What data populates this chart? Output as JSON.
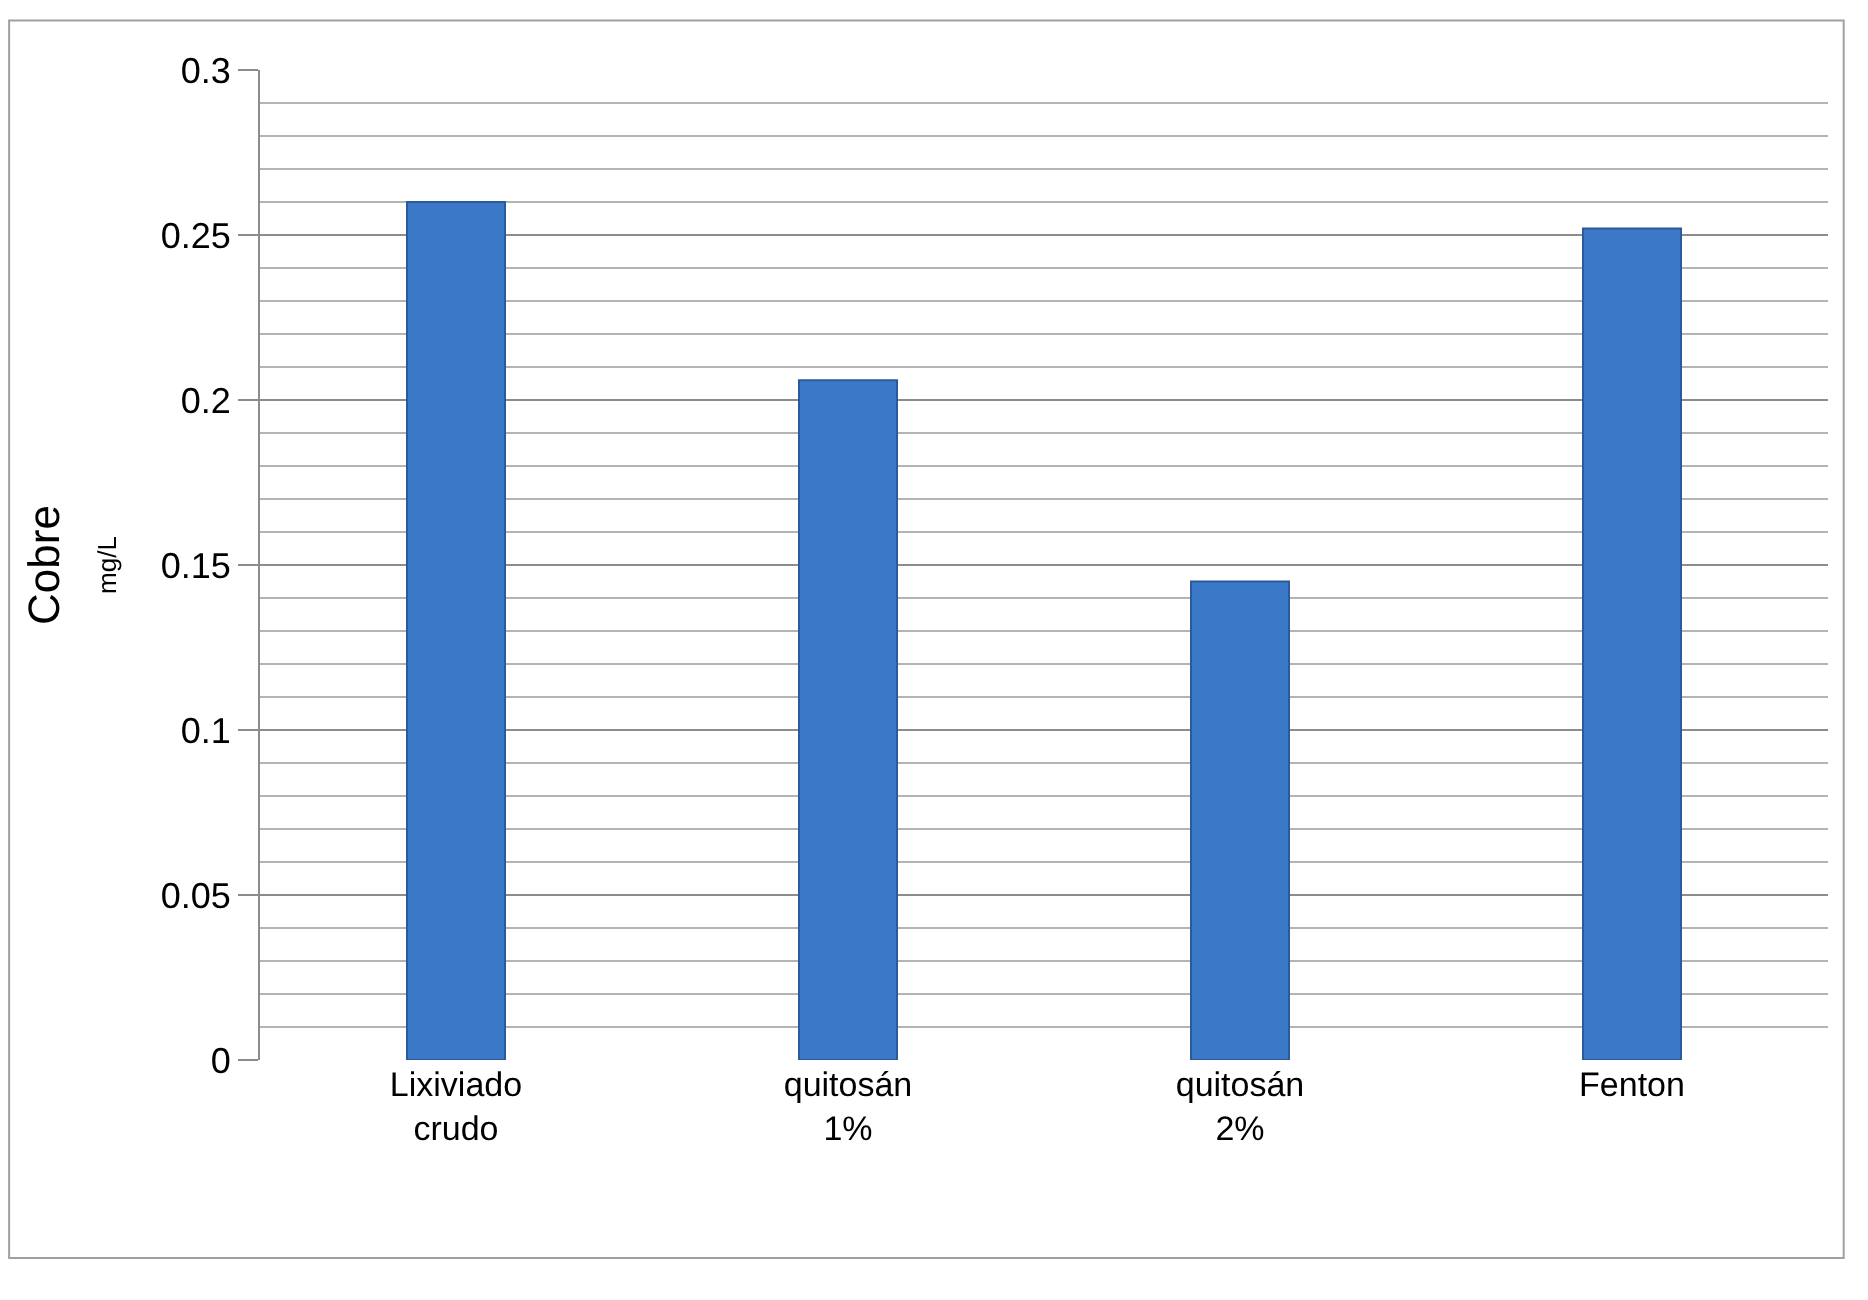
{
  "chart_data": {
    "type": "bar",
    "ylabel": "Cobre\nmg/L",
    "categories": [
      "Lixiviado\ncrudo",
      "quitosán\n1%",
      "quitosán\n2%",
      "Fenton"
    ],
    "values": [
      0.26,
      0.206,
      0.145,
      0.252
    ],
    "color": "#3c78c8",
    "ylim": [
      0,
      0.3
    ],
    "yticks": [
      0,
      0.05,
      0.1,
      0.15,
      0.2,
      0.25,
      0.3
    ],
    "grid": "y",
    "legend": false
  }
}
